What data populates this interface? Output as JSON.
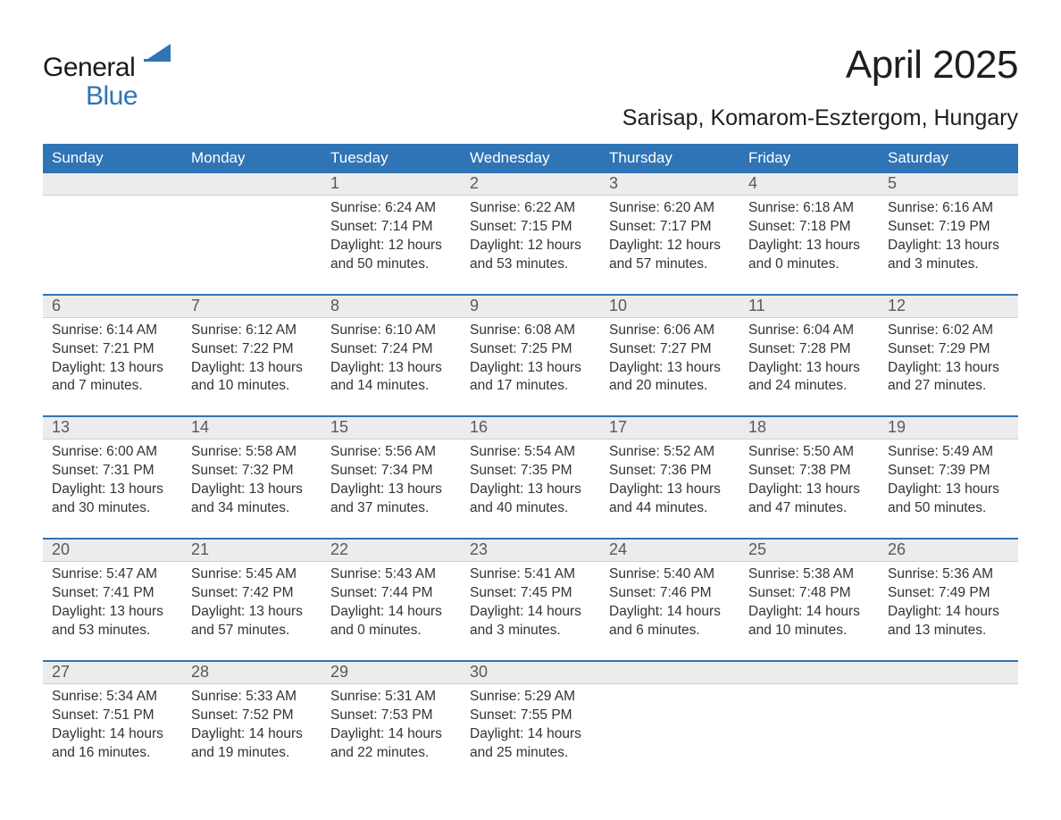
{
  "logo": {
    "general": "General",
    "blue": "Blue",
    "mark_color": "#2f74b5"
  },
  "title": "April 2025",
  "location": "Sarisap, Komarom-Esztergom, Hungary",
  "colors": {
    "brand": "#2f74b5",
    "header_stripe": "#ececec",
    "text": "#333333",
    "daynum_text": "#595959",
    "white": "#ffffff"
  },
  "day_names": [
    "Sunday",
    "Monday",
    "Tuesday",
    "Wednesday",
    "Thursday",
    "Friday",
    "Saturday"
  ],
  "weeks": [
    [
      {
        "num": "",
        "sunrise": "",
        "sunset": "",
        "daylight1": "",
        "daylight2": ""
      },
      {
        "num": "",
        "sunrise": "",
        "sunset": "",
        "daylight1": "",
        "daylight2": ""
      },
      {
        "num": "1",
        "sunrise": "Sunrise: 6:24 AM",
        "sunset": "Sunset: 7:14 PM",
        "daylight1": "Daylight: 12 hours",
        "daylight2": "and 50 minutes."
      },
      {
        "num": "2",
        "sunrise": "Sunrise: 6:22 AM",
        "sunset": "Sunset: 7:15 PM",
        "daylight1": "Daylight: 12 hours",
        "daylight2": "and 53 minutes."
      },
      {
        "num": "3",
        "sunrise": "Sunrise: 6:20 AM",
        "sunset": "Sunset: 7:17 PM",
        "daylight1": "Daylight: 12 hours",
        "daylight2": "and 57 minutes."
      },
      {
        "num": "4",
        "sunrise": "Sunrise: 6:18 AM",
        "sunset": "Sunset: 7:18 PM",
        "daylight1": "Daylight: 13 hours",
        "daylight2": "and 0 minutes."
      },
      {
        "num": "5",
        "sunrise": "Sunrise: 6:16 AM",
        "sunset": "Sunset: 7:19 PM",
        "daylight1": "Daylight: 13 hours",
        "daylight2": "and 3 minutes."
      }
    ],
    [
      {
        "num": "6",
        "sunrise": "Sunrise: 6:14 AM",
        "sunset": "Sunset: 7:21 PM",
        "daylight1": "Daylight: 13 hours",
        "daylight2": "and 7 minutes."
      },
      {
        "num": "7",
        "sunrise": "Sunrise: 6:12 AM",
        "sunset": "Sunset: 7:22 PM",
        "daylight1": "Daylight: 13 hours",
        "daylight2": "and 10 minutes."
      },
      {
        "num": "8",
        "sunrise": "Sunrise: 6:10 AM",
        "sunset": "Sunset: 7:24 PM",
        "daylight1": "Daylight: 13 hours",
        "daylight2": "and 14 minutes."
      },
      {
        "num": "9",
        "sunrise": "Sunrise: 6:08 AM",
        "sunset": "Sunset: 7:25 PM",
        "daylight1": "Daylight: 13 hours",
        "daylight2": "and 17 minutes."
      },
      {
        "num": "10",
        "sunrise": "Sunrise: 6:06 AM",
        "sunset": "Sunset: 7:27 PM",
        "daylight1": "Daylight: 13 hours",
        "daylight2": "and 20 minutes."
      },
      {
        "num": "11",
        "sunrise": "Sunrise: 6:04 AM",
        "sunset": "Sunset: 7:28 PM",
        "daylight1": "Daylight: 13 hours",
        "daylight2": "and 24 minutes."
      },
      {
        "num": "12",
        "sunrise": "Sunrise: 6:02 AM",
        "sunset": "Sunset: 7:29 PM",
        "daylight1": "Daylight: 13 hours",
        "daylight2": "and 27 minutes."
      }
    ],
    [
      {
        "num": "13",
        "sunrise": "Sunrise: 6:00 AM",
        "sunset": "Sunset: 7:31 PM",
        "daylight1": "Daylight: 13 hours",
        "daylight2": "and 30 minutes."
      },
      {
        "num": "14",
        "sunrise": "Sunrise: 5:58 AM",
        "sunset": "Sunset: 7:32 PM",
        "daylight1": "Daylight: 13 hours",
        "daylight2": "and 34 minutes."
      },
      {
        "num": "15",
        "sunrise": "Sunrise: 5:56 AM",
        "sunset": "Sunset: 7:34 PM",
        "daylight1": "Daylight: 13 hours",
        "daylight2": "and 37 minutes."
      },
      {
        "num": "16",
        "sunrise": "Sunrise: 5:54 AM",
        "sunset": "Sunset: 7:35 PM",
        "daylight1": "Daylight: 13 hours",
        "daylight2": "and 40 minutes."
      },
      {
        "num": "17",
        "sunrise": "Sunrise: 5:52 AM",
        "sunset": "Sunset: 7:36 PM",
        "daylight1": "Daylight: 13 hours",
        "daylight2": "and 44 minutes."
      },
      {
        "num": "18",
        "sunrise": "Sunrise: 5:50 AM",
        "sunset": "Sunset: 7:38 PM",
        "daylight1": "Daylight: 13 hours",
        "daylight2": "and 47 minutes."
      },
      {
        "num": "19",
        "sunrise": "Sunrise: 5:49 AM",
        "sunset": "Sunset: 7:39 PM",
        "daylight1": "Daylight: 13 hours",
        "daylight2": "and 50 minutes."
      }
    ],
    [
      {
        "num": "20",
        "sunrise": "Sunrise: 5:47 AM",
        "sunset": "Sunset: 7:41 PM",
        "daylight1": "Daylight: 13 hours",
        "daylight2": "and 53 minutes."
      },
      {
        "num": "21",
        "sunrise": "Sunrise: 5:45 AM",
        "sunset": "Sunset: 7:42 PM",
        "daylight1": "Daylight: 13 hours",
        "daylight2": "and 57 minutes."
      },
      {
        "num": "22",
        "sunrise": "Sunrise: 5:43 AM",
        "sunset": "Sunset: 7:44 PM",
        "daylight1": "Daylight: 14 hours",
        "daylight2": "and 0 minutes."
      },
      {
        "num": "23",
        "sunrise": "Sunrise: 5:41 AM",
        "sunset": "Sunset: 7:45 PM",
        "daylight1": "Daylight: 14 hours",
        "daylight2": "and 3 minutes."
      },
      {
        "num": "24",
        "sunrise": "Sunrise: 5:40 AM",
        "sunset": "Sunset: 7:46 PM",
        "daylight1": "Daylight: 14 hours",
        "daylight2": "and 6 minutes."
      },
      {
        "num": "25",
        "sunrise": "Sunrise: 5:38 AM",
        "sunset": "Sunset: 7:48 PM",
        "daylight1": "Daylight: 14 hours",
        "daylight2": "and 10 minutes."
      },
      {
        "num": "26",
        "sunrise": "Sunrise: 5:36 AM",
        "sunset": "Sunset: 7:49 PM",
        "daylight1": "Daylight: 14 hours",
        "daylight2": "and 13 minutes."
      }
    ],
    [
      {
        "num": "27",
        "sunrise": "Sunrise: 5:34 AM",
        "sunset": "Sunset: 7:51 PM",
        "daylight1": "Daylight: 14 hours",
        "daylight2": "and 16 minutes."
      },
      {
        "num": "28",
        "sunrise": "Sunrise: 5:33 AM",
        "sunset": "Sunset: 7:52 PM",
        "daylight1": "Daylight: 14 hours",
        "daylight2": "and 19 minutes."
      },
      {
        "num": "29",
        "sunrise": "Sunrise: 5:31 AM",
        "sunset": "Sunset: 7:53 PM",
        "daylight1": "Daylight: 14 hours",
        "daylight2": "and 22 minutes."
      },
      {
        "num": "30",
        "sunrise": "Sunrise: 5:29 AM",
        "sunset": "Sunset: 7:55 PM",
        "daylight1": "Daylight: 14 hours",
        "daylight2": "and 25 minutes."
      },
      {
        "num": "",
        "sunrise": "",
        "sunset": "",
        "daylight1": "",
        "daylight2": ""
      },
      {
        "num": "",
        "sunrise": "",
        "sunset": "",
        "daylight1": "",
        "daylight2": ""
      },
      {
        "num": "",
        "sunrise": "",
        "sunset": "",
        "daylight1": "",
        "daylight2": ""
      }
    ]
  ]
}
